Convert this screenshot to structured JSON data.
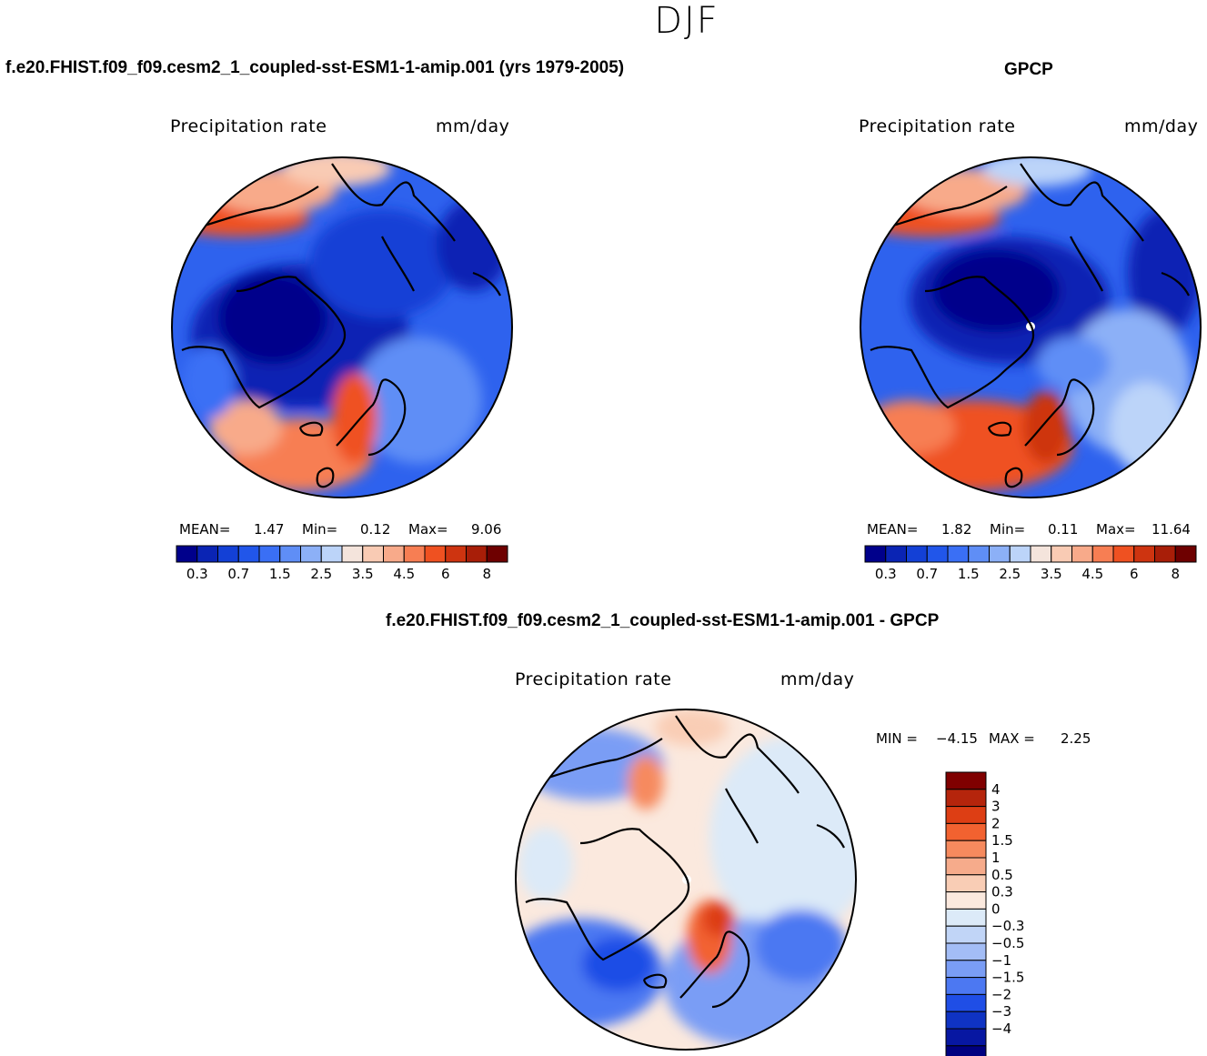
{
  "figure": {
    "season": "DJF",
    "variable": "Precipitation  rate",
    "units": "mm/day"
  },
  "panels": {
    "model": {
      "title": "f.e20.FHIST.f09_f09.cesm2_1_coupled-sst-ESM1-1-amip.001 (yrs 1979-2005)",
      "variable": "Precipitation  rate",
      "units": "mm/day",
      "mean_label": "MEAN=",
      "mean": "1.47",
      "min_label": "Min=",
      "min": "0.12",
      "max_label": "Max=",
      "max": "9.06"
    },
    "obs": {
      "title": "GPCP",
      "variable": "Precipitation  rate",
      "units": "mm/day",
      "mean_label": "MEAN=",
      "mean": "1.82",
      "min_label": "Min=",
      "min": "0.11",
      "max_label": "Max=",
      "max": "11.64"
    },
    "diff": {
      "title": "f.e20.FHIST.f09_f09.cesm2_1_coupled-sst-ESM1-1-amip.001 - GPCP",
      "variable": "Precipitation  rate",
      "units": "mm/day",
      "min_label": "MIN =",
      "min": "−4.15",
      "max_label": "MAX =",
      "max": "2.25"
    }
  },
  "colorbars": {
    "abs": {
      "colors": [
        "#00008b",
        "#0a24b4",
        "#1340d6",
        "#2156ea",
        "#3a6ff5",
        "#5f8ef6",
        "#8cb0f7",
        "#bcd4f9",
        "#f4e4dc",
        "#f9cbb4",
        "#f8aa8a",
        "#f77e53",
        "#ef5121",
        "#ce3410",
        "#a81e08",
        "#6e0000"
      ],
      "ticks": [
        "0.3",
        "0.7",
        "1.5",
        "2.5",
        "3.5",
        "4.5",
        "6",
        "8"
      ]
    },
    "diff": {
      "colors": [
        "#800000",
        "#b5250c",
        "#dd3e14",
        "#f26230",
        "#f68a5e",
        "#f6ab8b",
        "#f9cdb5",
        "#fbe9de",
        "#dceaf8",
        "#c1d5f7",
        "#a3bdf6",
        "#7a9df5",
        "#4c78f2",
        "#1f4ee6",
        "#0f33c3",
        "#0717a2",
        "#000080"
      ],
      "ticks": [
        "4",
        "3",
        "2",
        "1.5",
        "1",
        "0.5",
        "0.3",
        "0",
        "−0.3",
        "−0.5",
        "−1",
        "−1.5",
        "−2",
        "−3",
        "−4"
      ]
    }
  },
  "colors": {
    "ocean_subpolar_blue": "#3a6ff5",
    "arctic_dark_blue": "#1340d6",
    "atlantic_red": "#ef5121",
    "diff_neutral": "#fbe9de",
    "diff_blue": "#4c78f2",
    "diff_red": "#f26230"
  }
}
